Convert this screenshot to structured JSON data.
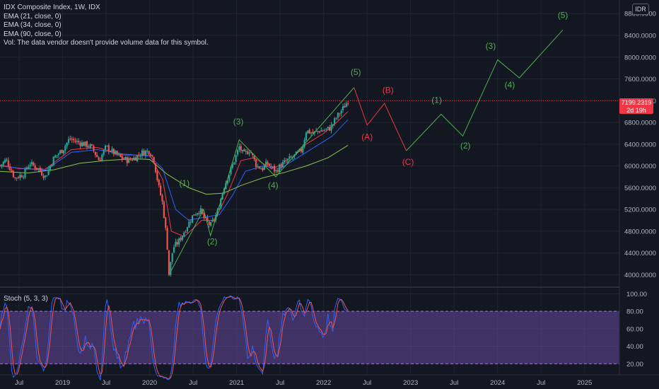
{
  "legend": {
    "title": "IDX Composite Index, 1W, IDX",
    "ema21": "EMA (21, close, 0)",
    "ema34": "EMA (34, close, 0)",
    "ema90": "EMA (90, close, 0)",
    "vol": "Vol: The data vendor doesn't provide volume data for this symbol."
  },
  "currency": "IDR",
  "current_price": {
    "value": "7199.2319",
    "countdown": "2d 19h"
  },
  "stoch_label": "Stoch (5, 3, 3)",
  "colors": {
    "background": "#131722",
    "up": "#26a69a",
    "down": "#ef5350",
    "ema21": "#f23645",
    "ema34": "#2962ff",
    "ema90": "#8bc34a",
    "wave_green": "#4caf50",
    "wave_red": "#f23645",
    "stoch_k": "#2962ff",
    "stoch_d": "#ef5350",
    "stoch_band": "#7e57c2"
  },
  "chart_data": [
    {
      "type": "candlestick",
      "title": "IDX Composite Index, 1W, IDX",
      "y_axis": {
        "ticks": [
          "8800.0000",
          "8400.0000",
          "8000.0000",
          "7600.0000",
          "7200.0000",
          "6800.0000",
          "6400.0000",
          "6000.0000",
          "5600.0000",
          "5200.0000",
          "4800.0000",
          "4400.0000",
          "4000.0000"
        ],
        "range": [
          3850,
          9050
        ]
      },
      "x_axis": {
        "ticks": [
          "Jul",
          "2019",
          "Jul",
          "2020",
          "Jul",
          "2021",
          "Jul",
          "2022",
          "Jul",
          "2023",
          "Jul",
          "2024",
          "Jul",
          "2025"
        ],
        "tick_values": [
          2018.5,
          2019.0,
          2019.5,
          2020.0,
          2020.5,
          2021.0,
          2021.5,
          2022.0,
          2022.5,
          2023.0,
          2023.5,
          2024.0,
          2024.5,
          2025.0
        ],
        "range": [
          2018.28,
          2025.4
        ]
      },
      "price_anchors": [
        [
          2018.28,
          6000
        ],
        [
          2018.35,
          6120
        ],
        [
          2018.45,
          5780
        ],
        [
          2018.55,
          5850
        ],
        [
          2018.62,
          6050
        ],
        [
          2018.72,
          5950
        ],
        [
          2018.8,
          5800
        ],
        [
          2018.9,
          6150
        ],
        [
          2019.0,
          6300
        ],
        [
          2019.08,
          6500
        ],
        [
          2019.15,
          6450
        ],
        [
          2019.25,
          6400
        ],
        [
          2019.33,
          6350
        ],
        [
          2019.42,
          6100
        ],
        [
          2019.5,
          6350
        ],
        [
          2019.58,
          6250
        ],
        [
          2019.67,
          6150
        ],
        [
          2019.75,
          6100
        ],
        [
          2019.83,
          6150
        ],
        [
          2019.92,
          6250
        ],
        [
          2020.0,
          6280
        ],
        [
          2020.05,
          6100
        ],
        [
          2020.1,
          5650
        ],
        [
          2020.15,
          5300
        ],
        [
          2020.2,
          4600
        ],
        [
          2020.22,
          3990
        ],
        [
          2020.27,
          4500
        ],
        [
          2020.33,
          4600
        ],
        [
          2020.4,
          4800
        ],
        [
          2020.45,
          4950
        ],
        [
          2020.5,
          5100
        ],
        [
          2020.58,
          5200
        ],
        [
          2020.62,
          5050
        ],
        [
          2020.7,
          4900
        ],
        [
          2020.78,
          5150
        ],
        [
          2020.85,
          5600
        ],
        [
          2020.9,
          5800
        ],
        [
          2020.95,
          6000
        ],
        [
          2021.03,
          6350
        ],
        [
          2021.08,
          6200
        ],
        [
          2021.15,
          6300
        ],
        [
          2021.23,
          6000
        ],
        [
          2021.3,
          5950
        ],
        [
          2021.35,
          6050
        ],
        [
          2021.45,
          5900
        ],
        [
          2021.5,
          6000
        ],
        [
          2021.58,
          6100
        ],
        [
          2021.68,
          6200
        ],
        [
          2021.75,
          6300
        ],
        [
          2021.8,
          6650
        ],
        [
          2021.88,
          6600
        ],
        [
          2021.95,
          6650
        ],
        [
          2022.0,
          6650
        ],
        [
          2022.08,
          6700
        ],
        [
          2022.15,
          6900
        ],
        [
          2022.22,
          7050
        ],
        [
          2022.28,
          7200
        ]
      ],
      "series": [
        {
          "name": "EMA (21, close, 0)",
          "values": [
            [
              2018.28,
              6020
            ],
            [
              2018.5,
              5950
            ],
            [
              2018.8,
              5940
            ],
            [
              2019.1,
              6300
            ],
            [
              2019.4,
              6340
            ],
            [
              2019.7,
              6200
            ],
            [
              2020.0,
              6200
            ],
            [
              2020.15,
              5750
            ],
            [
              2020.25,
              4800
            ],
            [
              2020.4,
              4700
            ],
            [
              2020.6,
              5000
            ],
            [
              2020.75,
              5000
            ],
            [
              2020.9,
              5500
            ],
            [
              2021.05,
              6100
            ],
            [
              2021.2,
              6150
            ],
            [
              2021.4,
              5950
            ],
            [
              2021.6,
              6080
            ],
            [
              2021.8,
              6400
            ],
            [
              2022.0,
              6600
            ],
            [
              2022.15,
              6800
            ],
            [
              2022.28,
              7000
            ]
          ]
        },
        {
          "name": "EMA (34, close, 0)",
          "values": [
            [
              2018.28,
              6000
            ],
            [
              2018.5,
              5960
            ],
            [
              2018.8,
              5920
            ],
            [
              2019.1,
              6250
            ],
            [
              2019.4,
              6300
            ],
            [
              2019.7,
              6220
            ],
            [
              2020.0,
              6180
            ],
            [
              2020.15,
              5950
            ],
            [
              2020.3,
              5200
            ],
            [
              2020.45,
              5000
            ],
            [
              2020.6,
              5050
            ],
            [
              2020.8,
              5100
            ],
            [
              2020.95,
              5450
            ],
            [
              2021.1,
              5900
            ],
            [
              2021.3,
              6000
            ],
            [
              2021.5,
              5950
            ],
            [
              2021.7,
              6150
            ],
            [
              2021.9,
              6350
            ],
            [
              2022.1,
              6550
            ],
            [
              2022.28,
              6850
            ]
          ]
        },
        {
          "name": "EMA (90, close, 0)",
          "values": [
            [
              2018.28,
              5900
            ],
            [
              2018.6,
              5870
            ],
            [
              2018.9,
              5930
            ],
            [
              2019.2,
              6050
            ],
            [
              2019.5,
              6100
            ],
            [
              2019.8,
              6130
            ],
            [
              2020.0,
              6120
            ],
            [
              2020.2,
              5850
            ],
            [
              2020.45,
              5600
            ],
            [
              2020.65,
              5480
            ],
            [
              2020.85,
              5500
            ],
            [
              2021.05,
              5640
            ],
            [
              2021.3,
              5780
            ],
            [
              2021.55,
              5880
            ],
            [
              2021.8,
              6000
            ],
            [
              2022.05,
              6150
            ],
            [
              2022.28,
              6380
            ]
          ]
        }
      ],
      "current_price": 7199.2319,
      "waves": {
        "green_path": [
          [
            2020.22,
            3990
          ],
          [
            2020.62,
            5200
          ],
          [
            2020.7,
            4720
          ],
          [
            2021.03,
            6480
          ],
          [
            2021.45,
            5800
          ],
          [
            2022.35,
            7440
          ]
        ],
        "red_path": [
          [
            2022.35,
            7440
          ],
          [
            2022.5,
            6750
          ],
          [
            2022.7,
            7150
          ],
          [
            2022.95,
            6280
          ]
        ],
        "projection_path": [
          [
            2022.95,
            6280
          ],
          [
            2023.35,
            6950
          ],
          [
            2023.6,
            6550
          ],
          [
            2024.0,
            7950
          ],
          [
            2024.25,
            7620
          ],
          [
            2024.75,
            8500
          ]
        ],
        "labels": [
          {
            "text": "(1)",
            "color": "green",
            "x": 2020.4,
            "y": 5630
          },
          {
            "text": "(2)",
            "color": "green",
            "x": 2020.72,
            "y": 4560
          },
          {
            "text": "(3)",
            "color": "green",
            "x": 2021.02,
            "y": 6760
          },
          {
            "text": "(4)",
            "color": "green",
            "x": 2021.42,
            "y": 5590
          },
          {
            "text": "(5)",
            "color": "green",
            "x": 2022.37,
            "y": 7670
          },
          {
            "text": "(A)",
            "color": "red",
            "x": 2022.5,
            "y": 6480
          },
          {
            "text": "(B)",
            "color": "red",
            "x": 2022.74,
            "y": 7340
          },
          {
            "text": "(C)",
            "color": "red",
            "x": 2022.97,
            "y": 6020
          },
          {
            "text": "(1)",
            "color": "green",
            "x": 2023.3,
            "y": 7160
          },
          {
            "text": "(2)",
            "color": "green",
            "x": 2023.63,
            "y": 6320
          },
          {
            "text": "(3)",
            "color": "green",
            "x": 2023.92,
            "y": 8150
          },
          {
            "text": "(4)",
            "color": "green",
            "x": 2024.14,
            "y": 7440
          },
          {
            "text": "(5)",
            "color": "green",
            "x": 2024.75,
            "y": 8720
          }
        ]
      }
    },
    {
      "type": "line",
      "title": "Stoch (5, 3, 3)",
      "y_axis": {
        "ticks": [
          "100.00",
          "80.00",
          "60.00",
          "40.00",
          "20.00"
        ],
        "range": [
          9,
          106
        ]
      },
      "band": [
        20,
        80
      ],
      "x_range": [
        2018.28,
        2022.28
      ]
    }
  ]
}
